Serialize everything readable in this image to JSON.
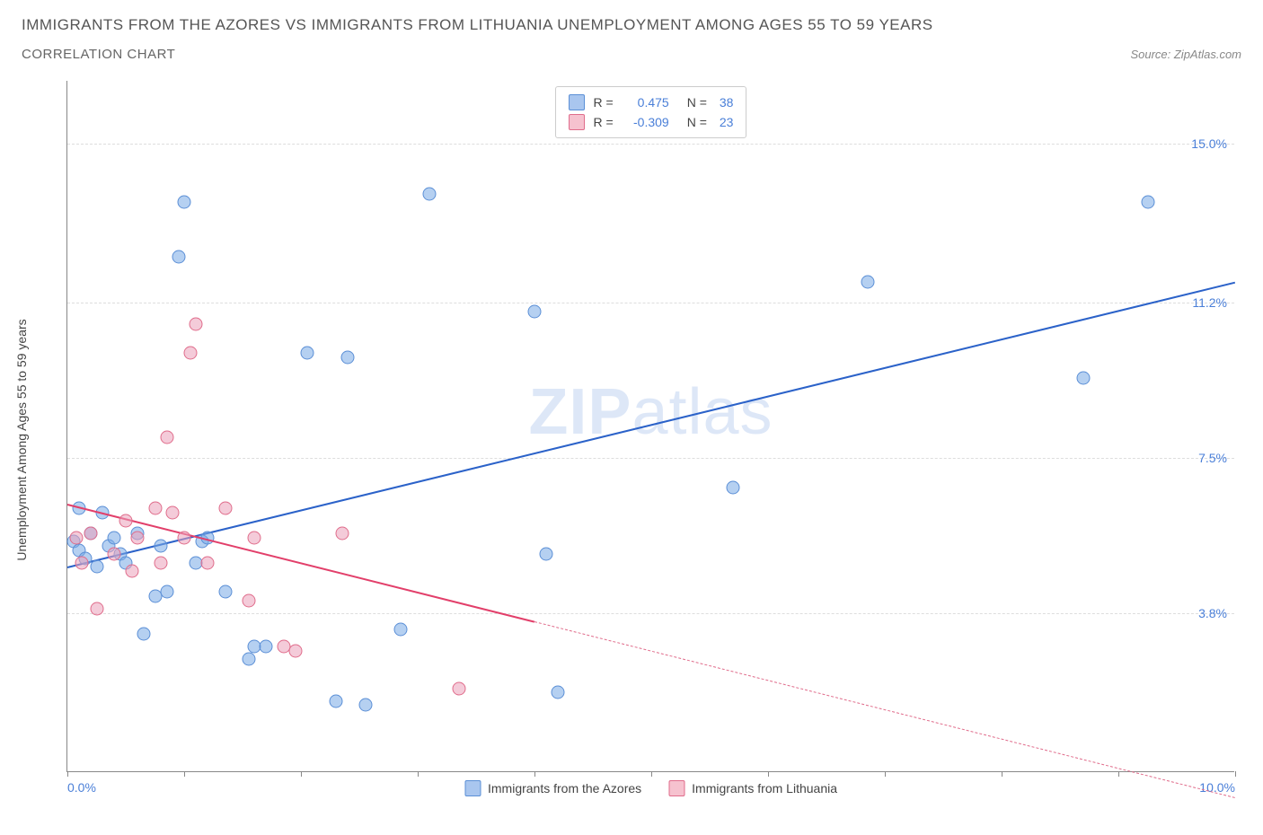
{
  "header": {
    "title": "IMMIGRANTS FROM THE AZORES VS IMMIGRANTS FROM LITHUANIA UNEMPLOYMENT AMONG AGES 55 TO 59 YEARS",
    "subtitle": "CORRELATION CHART",
    "source": "Source: ZipAtlas.com"
  },
  "chart": {
    "type": "scatter",
    "y_axis_label": "Unemployment Among Ages 55 to 59 years",
    "xlim": [
      0,
      10
    ],
    "ylim": [
      0,
      16.5
    ],
    "x_ticks": [
      0,
      1,
      2,
      3,
      4,
      5,
      6,
      7,
      8,
      9,
      10
    ],
    "x_tick_labels": {
      "0": "0.0%",
      "10": "10.0%"
    },
    "y_gridlines": [
      3.8,
      7.5,
      11.2,
      15.0
    ],
    "y_tick_labels": [
      "3.8%",
      "7.5%",
      "11.2%",
      "15.0%"
    ],
    "background_color": "#ffffff",
    "grid_color": "#dddddd",
    "axis_color": "#888888",
    "tick_label_color": "#4a7fd8",
    "watermark_text_1": "ZIP",
    "watermark_text_2": "atlas",
    "legend_top": [
      {
        "swatch_fill": "#a9c6ef",
        "swatch_border": "#5b8fd6",
        "r_label": "R =",
        "r_value": "0.475",
        "n_label": "N =",
        "n_value": "38"
      },
      {
        "swatch_fill": "#f6c2cf",
        "swatch_border": "#e06c8b",
        "r_label": "R =",
        "r_value": "-0.309",
        "n_label": "N =",
        "n_value": "23"
      }
    ],
    "legend_bottom": [
      {
        "swatch_fill": "#a9c6ef",
        "swatch_border": "#5b8fd6",
        "label": "Immigrants from the Azores"
      },
      {
        "swatch_fill": "#f6c2cf",
        "swatch_border": "#e06c8b",
        "label": "Immigrants from Lithuania"
      }
    ],
    "series": [
      {
        "name": "azores",
        "marker_fill": "rgba(120,170,230,0.55)",
        "marker_border": "#5b8fd6",
        "marker_size": 15,
        "trend_color": "#2b62c9",
        "trend_width": 2,
        "trend_start": [
          0,
          4.9
        ],
        "trend_end": [
          10,
          11.7
        ],
        "points": [
          [
            0.05,
            5.5
          ],
          [
            0.1,
            6.3
          ],
          [
            0.1,
            5.3
          ],
          [
            0.15,
            5.1
          ],
          [
            0.2,
            5.7
          ],
          [
            0.25,
            4.9
          ],
          [
            0.3,
            6.2
          ],
          [
            0.35,
            5.4
          ],
          [
            0.4,
            5.6
          ],
          [
            0.45,
            5.2
          ],
          [
            0.5,
            5.0
          ],
          [
            0.6,
            5.7
          ],
          [
            0.65,
            3.3
          ],
          [
            0.75,
            4.2
          ],
          [
            0.8,
            5.4
          ],
          [
            0.85,
            4.3
          ],
          [
            0.95,
            12.3
          ],
          [
            1.0,
            13.6
          ],
          [
            1.1,
            5.0
          ],
          [
            1.15,
            5.5
          ],
          [
            1.2,
            5.6
          ],
          [
            1.35,
            4.3
          ],
          [
            1.55,
            2.7
          ],
          [
            1.6,
            3.0
          ],
          [
            1.7,
            3.0
          ],
          [
            2.05,
            10.0
          ],
          [
            2.3,
            1.7
          ],
          [
            2.4,
            9.9
          ],
          [
            2.55,
            1.6
          ],
          [
            2.85,
            3.4
          ],
          [
            3.1,
            13.8
          ],
          [
            4.0,
            11.0
          ],
          [
            4.2,
            1.9
          ],
          [
            4.1,
            5.2
          ],
          [
            5.7,
            6.8
          ],
          [
            6.85,
            11.7
          ],
          [
            8.7,
            9.4
          ],
          [
            9.25,
            13.6
          ]
        ]
      },
      {
        "name": "lithuania",
        "marker_fill": "rgba(235,160,185,0.55)",
        "marker_border": "#e06c8b",
        "marker_size": 15,
        "trend_color": "#e23f6a",
        "trend_width": 2,
        "trend_start": [
          0,
          6.4
        ],
        "trend_end": [
          4.0,
          3.6
        ],
        "trend_dashed_end": [
          10,
          -0.6
        ],
        "points": [
          [
            0.08,
            5.6
          ],
          [
            0.12,
            5.0
          ],
          [
            0.2,
            5.7
          ],
          [
            0.25,
            3.9
          ],
          [
            0.4,
            5.2
          ],
          [
            0.5,
            6.0
          ],
          [
            0.55,
            4.8
          ],
          [
            0.6,
            5.6
          ],
          [
            0.75,
            6.3
          ],
          [
            0.8,
            5.0
          ],
          [
            0.85,
            8.0
          ],
          [
            0.9,
            6.2
          ],
          [
            1.0,
            5.6
          ],
          [
            1.05,
            10.0
          ],
          [
            1.1,
            10.7
          ],
          [
            1.2,
            5.0
          ],
          [
            1.35,
            6.3
          ],
          [
            1.55,
            4.1
          ],
          [
            1.6,
            5.6
          ],
          [
            1.85,
            3.0
          ],
          [
            1.95,
            2.9
          ],
          [
            2.35,
            5.7
          ],
          [
            3.35,
            2.0
          ]
        ]
      }
    ]
  }
}
